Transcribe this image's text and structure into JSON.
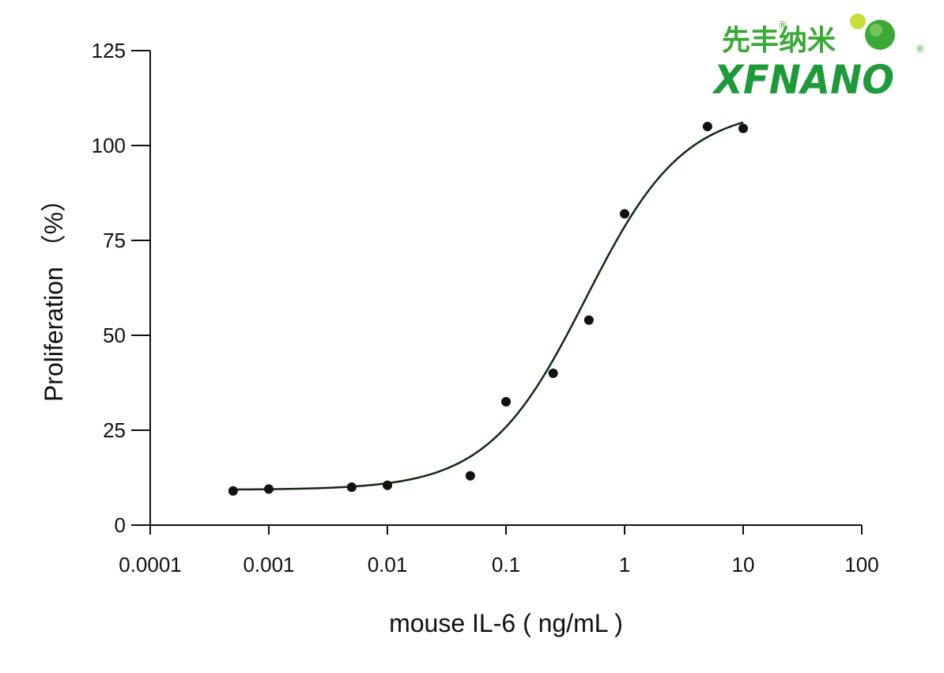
{
  "logo": {
    "text_cn": "先丰纳米",
    "text_en": "XFNANO",
    "registered_mark": "®",
    "colors": {
      "green": "#1e9a3a",
      "light_green": "#c8dc3c"
    }
  },
  "chart_data": {
    "type": "scatter",
    "xlabel": "mouse IL-6 ( ng/mL )",
    "ylabel": "Proliferation （%）",
    "xscale": "log",
    "xlim": [
      0.0001,
      100
    ],
    "ylim": [
      0,
      125
    ],
    "x_ticks": [
      0.0001,
      0.001,
      0.01,
      0.1,
      1,
      10,
      100
    ],
    "x_tick_labels": [
      "0.0001",
      "0.001",
      "0.01",
      "0.1",
      "1",
      "10",
      "100"
    ],
    "y_ticks": [
      0,
      25,
      50,
      75,
      100,
      125
    ],
    "y_tick_labels": [
      "0",
      "25",
      "50",
      "75",
      "100",
      "125"
    ],
    "grid": false,
    "points": [
      {
        "x": 0.0005,
        "y": 9
      },
      {
        "x": 0.001,
        "y": 9.5
      },
      {
        "x": 0.005,
        "y": 10
      },
      {
        "x": 0.01,
        "y": 10.5
      },
      {
        "x": 0.05,
        "y": 13
      },
      {
        "x": 0.1,
        "y": 32.5
      },
      {
        "x": 0.25,
        "y": 40
      },
      {
        "x": 0.5,
        "y": 54
      },
      {
        "x": 1,
        "y": 82
      },
      {
        "x": 5,
        "y": 105
      },
      {
        "x": 10,
        "y": 104.5
      }
    ],
    "fit_curve": {
      "model": "four-parameter logistic",
      "bottom": 9.3,
      "top": 110,
      "ec50": 0.47,
      "hill_slope": 1.05,
      "x_range": [
        0.0005,
        10
      ]
    },
    "colors": {
      "points": "#111111",
      "curve": "#0f2a12",
      "axes": "#111111"
    }
  }
}
